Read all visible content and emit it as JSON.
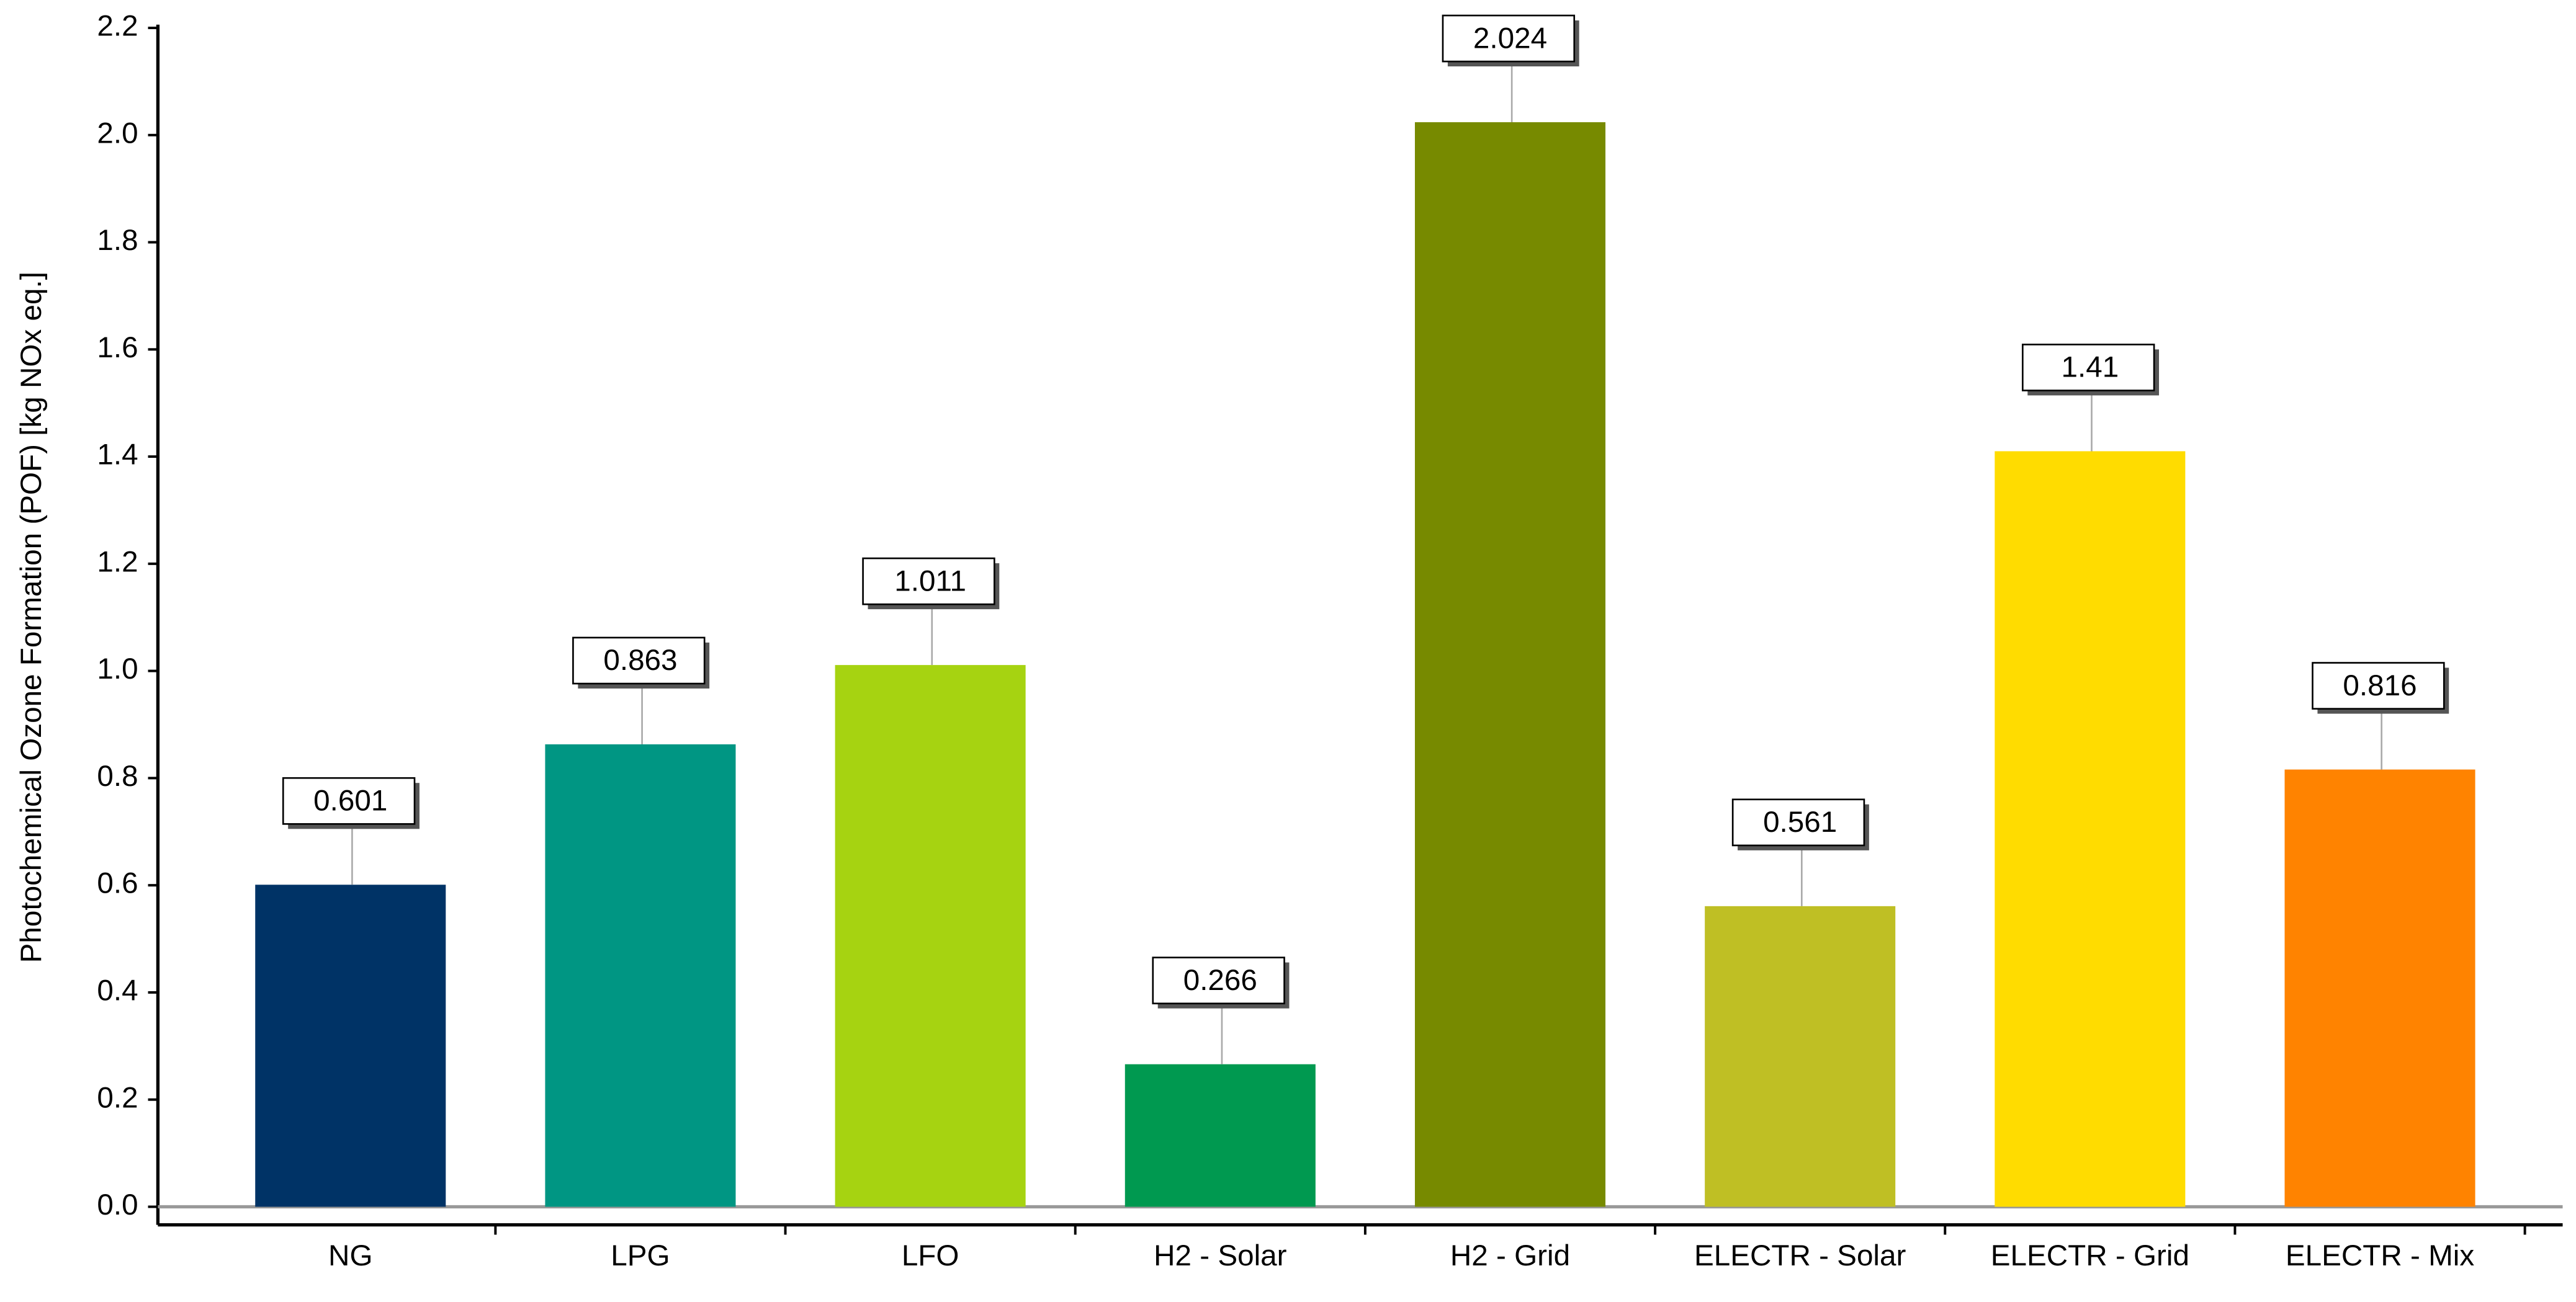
{
  "chart_data": {
    "type": "bar",
    "y_label": "Photochemical Ozone Formation (POF) [kg NOx eq.]",
    "categories": [
      "NG",
      "LPG",
      "LFO",
      "H2 - Solar",
      "H2 - Grid",
      "ELECTR - Solar",
      "ELECTR - Grid",
      "ELECTR - Mix"
    ],
    "values": [
      0.601,
      0.863,
      1.011,
      0.266,
      2.024,
      0.561,
      1.41,
      0.816
    ],
    "colors": [
      "#003366",
      "#009683",
      "#a6d311",
      "#009950",
      "#778a00",
      "#bfbf24",
      "#ffdc00",
      "#ff8300"
    ],
    "ylim": [
      0,
      2.2
    ],
    "yticks": [
      {
        "value": 0,
        "label": "0.0"
      },
      0.2,
      0.4,
      0.6,
      0.8,
      {
        "value": 1,
        "label": "1.0"
      },
      1.2,
      1.4,
      1.6,
      1.8,
      {
        "value": 2,
        "label": "2.0"
      },
      2.2
    ],
    "grid": false
  }
}
